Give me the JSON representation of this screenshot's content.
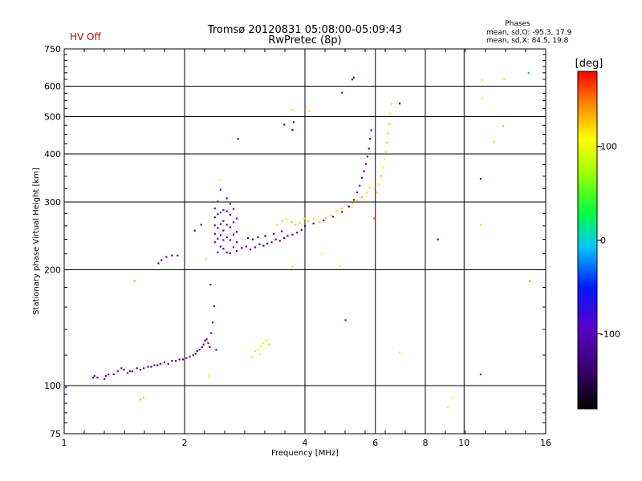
{
  "header": {
    "title_line1": "Tromsø 20120831 05:08:00-05:09:43",
    "title_line2": "RwPretec (8p)",
    "status": "HV Off",
    "status_color": "#cc0000"
  },
  "stats": {
    "heading": "Phases",
    "line_o": "mean, sd,O: -95.3, 17.9",
    "line_x": "mean, sd,X:  84.5, 19.8"
  },
  "colorbar": {
    "label": "[deg]",
    "min": -180,
    "max": 180,
    "ticks": [
      {
        "value": 100,
        "label": "100"
      },
      {
        "value": 0,
        "label": "0"
      },
      {
        "value": -100,
        "label": "-100"
      }
    ]
  },
  "chart_data": {
    "type": "scatter",
    "title": "Tromsø 20120831 05:08:00-05:09:43",
    "subtitle": "RwPretec (8p)",
    "xlabel": "Frequency [MHz]",
    "ylabel": "Stationary phase Virtual Height [km]",
    "x_scale": "log",
    "y_scale": "log",
    "xlim": [
      1,
      16
    ],
    "ylim": [
      75,
      750
    ],
    "grid": true,
    "x_ticks": [
      {
        "value": 1,
        "label": "1"
      },
      {
        "value": 2,
        "label": "2"
      },
      {
        "value": 4,
        "label": "4"
      },
      {
        "value": 6,
        "label": "6"
      },
      {
        "value": 8,
        "label": "8"
      },
      {
        "value": 10,
        "label": "10"
      },
      {
        "value": 16,
        "label": "16"
      }
    ],
    "y_ticks": [
      {
        "value": 75,
        "label": "75"
      },
      {
        "value": 100,
        "label": "100"
      },
      {
        "value": 200,
        "label": "200"
      },
      {
        "value": 300,
        "label": "300"
      },
      {
        "value": 400,
        "label": "400"
      },
      {
        "value": 500,
        "label": "500"
      },
      {
        "value": 600,
        "label": "600"
      },
      {
        "value": 750,
        "label": "750"
      }
    ],
    "x_grid": [
      2,
      4,
      6,
      8,
      10
    ],
    "y_grid": [
      100,
      200,
      300,
      400,
      500,
      600
    ],
    "color_encoding": "phase_deg",
    "points": [
      [
        1.01,
        99,
        -115
      ],
      [
        1.18,
        105,
        -110
      ],
      [
        1.19,
        106,
        -105
      ],
      [
        1.21,
        105,
        -115
      ],
      [
        1.26,
        104,
        -110
      ],
      [
        1.27,
        106,
        -100
      ],
      [
        1.29,
        107,
        -112
      ],
      [
        1.33,
        107,
        -108
      ],
      [
        1.36,
        109,
        -110
      ],
      [
        1.39,
        111,
        -105
      ],
      [
        1.41,
        110,
        -112
      ],
      [
        1.44,
        108,
        -100
      ],
      [
        1.46,
        109,
        -110
      ],
      [
        1.48,
        109,
        -108
      ],
      [
        1.52,
        111,
        -115
      ],
      [
        1.55,
        110,
        -105
      ],
      [
        1.58,
        111,
        -110
      ],
      [
        1.62,
        112,
        -108
      ],
      [
        1.65,
        112,
        -112
      ],
      [
        1.68,
        113,
        -105
      ],
      [
        1.71,
        113,
        -110
      ],
      [
        1.74,
        114,
        -108
      ],
      [
        1.78,
        115,
        -112
      ],
      [
        1.82,
        114,
        -110
      ],
      [
        1.86,
        116,
        -105
      ],
      [
        1.9,
        116,
        -112
      ],
      [
        1.94,
        117,
        -108
      ],
      [
        1.98,
        117,
        -110
      ],
      [
        2.02,
        118,
        -105
      ],
      [
        2.06,
        119,
        -112
      ],
      [
        2.1,
        120,
        -108
      ],
      [
        2.13,
        121,
        -112
      ],
      [
        2.15,
        123,
        -105
      ],
      [
        2.18,
        124,
        -110
      ],
      [
        2.21,
        126,
        -108
      ],
      [
        2.23,
        128,
        -112
      ],
      [
        2.25,
        131,
        -105
      ],
      [
        2.27,
        132,
        -110
      ],
      [
        2.29,
        129,
        -100
      ],
      [
        2.31,
        126,
        -115
      ],
      [
        2.33,
        137,
        -110
      ],
      [
        2.35,
        146,
        -105
      ],
      [
        2.37,
        161,
        -112
      ],
      [
        2.32,
        183,
        -105
      ],
      [
        2.4,
        124,
        -60
      ],
      [
        2.3,
        106,
        110
      ],
      [
        1.55,
        92,
        130
      ],
      [
        1.58,
        93,
        125
      ],
      [
        1.5,
        187,
        140
      ],
      [
        1.72,
        208,
        -105
      ],
      [
        1.75,
        212,
        -110
      ],
      [
        1.8,
        216,
        -108
      ],
      [
        1.86,
        218,
        -112
      ],
      [
        1.92,
        218,
        -105
      ],
      [
        2.26,
        213,
        120
      ],
      [
        2.12,
        253,
        -110
      ],
      [
        2.2,
        262,
        -108
      ],
      [
        2.38,
        236,
        -105
      ],
      [
        2.38,
        248,
        -110
      ],
      [
        2.38,
        261,
        -115
      ],
      [
        2.38,
        274,
        -95
      ],
      [
        2.38,
        289,
        -60
      ],
      [
        2.42,
        222,
        -100
      ],
      [
        2.42,
        241,
        -110
      ],
      [
        2.42,
        257,
        -112
      ],
      [
        2.42,
        279,
        -105
      ],
      [
        2.42,
        301,
        -60
      ],
      [
        2.46,
        230,
        -110
      ],
      [
        2.46,
        246,
        -105
      ],
      [
        2.46,
        263,
        -112
      ],
      [
        2.46,
        282,
        -95
      ],
      [
        2.46,
        323,
        -100
      ],
      [
        2.5,
        227,
        -110
      ],
      [
        2.5,
        239,
        -100
      ],
      [
        2.5,
        253,
        -115
      ],
      [
        2.5,
        268,
        -110
      ],
      [
        2.5,
        286,
        -60
      ],
      [
        2.55,
        222,
        -110
      ],
      [
        2.55,
        243,
        -105
      ],
      [
        2.55,
        262,
        -112
      ],
      [
        2.55,
        284,
        -95
      ],
      [
        2.55,
        307,
        -110
      ],
      [
        2.6,
        221,
        -110
      ],
      [
        2.6,
        239,
        -100
      ],
      [
        2.6,
        258,
        -112
      ],
      [
        2.6,
        278,
        -105
      ],
      [
        2.6,
        297,
        -60
      ],
      [
        2.65,
        229,
        -105
      ],
      [
        2.65,
        247,
        -115
      ],
      [
        2.65,
        266,
        -110
      ],
      [
        2.65,
        288,
        -95
      ],
      [
        2.7,
        224,
        -110
      ],
      [
        2.7,
        236,
        -105
      ],
      [
        2.7,
        251,
        -112
      ],
      [
        2.7,
        272,
        -100
      ],
      [
        2.45,
        342,
        110
      ],
      [
        2.72,
        438,
        -100
      ],
      [
        2.78,
        228,
        -110
      ],
      [
        2.85,
        230,
        -105
      ],
      [
        2.92,
        226,
        -112
      ],
      [
        3.0,
        229,
        -108
      ],
      [
        3.08,
        233,
        -120
      ],
      [
        3.15,
        231,
        -130
      ],
      [
        3.22,
        234,
        -132
      ],
      [
        3.3,
        236,
        -128
      ],
      [
        3.38,
        240,
        -130
      ],
      [
        3.46,
        238,
        -125
      ],
      [
        3.55,
        242,
        -120
      ],
      [
        3.62,
        245,
        -125
      ],
      [
        3.72,
        247,
        -118
      ],
      [
        3.82,
        250,
        -115
      ],
      [
        3.92,
        254,
        -112
      ],
      [
        2.88,
        242,
        -112
      ],
      [
        2.96,
        240,
        -110
      ],
      [
        3.05,
        243,
        -118
      ],
      [
        3.18,
        245,
        -128
      ],
      [
        3.34,
        248,
        -130
      ],
      [
        3.5,
        252,
        -125
      ],
      [
        3.4,
        262,
        120
      ],
      [
        3.5,
        268,
        125
      ],
      [
        3.6,
        271,
        115
      ],
      [
        3.7,
        266,
        130
      ],
      [
        3.78,
        262,
        120
      ],
      [
        3.88,
        265,
        125
      ],
      [
        3.98,
        272,
        118
      ],
      [
        4.08,
        268,
        130
      ],
      [
        4.2,
        271,
        120
      ],
      [
        4.35,
        266,
        128
      ],
      [
        4.5,
        272,
        120
      ],
      [
        4.65,
        278,
        125
      ],
      [
        4.8,
        285,
        118
      ],
      [
        4.95,
        289,
        130
      ],
      [
        5.1,
        294,
        120
      ],
      [
        5.25,
        298,
        125
      ],
      [
        5.4,
        303,
        118
      ],
      [
        5.55,
        309,
        130
      ],
      [
        5.7,
        318,
        120
      ],
      [
        5.8,
        327,
        125
      ],
      [
        4.0,
        260,
        -110
      ],
      [
        4.2,
        264,
        -105
      ],
      [
        4.45,
        269,
        -112
      ],
      [
        4.7,
        275,
        -100
      ],
      [
        4.95,
        283,
        -105
      ],
      [
        5.15,
        292,
        -110
      ],
      [
        5.3,
        304,
        -105
      ],
      [
        5.4,
        318,
        -110
      ],
      [
        5.48,
        331,
        -105
      ],
      [
        5.55,
        347,
        -112
      ],
      [
        5.62,
        361,
        -100
      ],
      [
        5.68,
        377,
        -110
      ],
      [
        5.73,
        394,
        -105
      ],
      [
        5.78,
        413,
        -110
      ],
      [
        5.82,
        438,
        -112
      ],
      [
        5.86,
        461,
        -100
      ],
      [
        6.05,
        318,
        120
      ],
      [
        6.12,
        333,
        110
      ],
      [
        6.2,
        351,
        125
      ],
      [
        6.26,
        368,
        115
      ],
      [
        6.32,
        387,
        110
      ],
      [
        6.38,
        405,
        120
      ],
      [
        6.42,
        428,
        130
      ],
      [
        6.46,
        452,
        125
      ],
      [
        6.5,
        478,
        130
      ],
      [
        6.54,
        510,
        120
      ],
      [
        6.58,
        540,
        125
      ],
      [
        3.05,
        124,
        95
      ],
      [
        3.1,
        127,
        100
      ],
      [
        3.15,
        129,
        90
      ],
      [
        3.2,
        131,
        95
      ],
      [
        3.25,
        128,
        88
      ],
      [
        3.08,
        121,
        100
      ],
      [
        2.95,
        119,
        90
      ],
      [
        3.0,
        123,
        95
      ],
      [
        4.95,
        577,
        -100
      ],
      [
        5.25,
        625,
        -105
      ],
      [
        5.3,
        632,
        -110
      ],
      [
        3.55,
        477,
        -110
      ],
      [
        3.75,
        484,
        -105
      ],
      [
        3.72,
        462,
        -120
      ],
      [
        3.72,
        520,
        120
      ],
      [
        4.1,
        518,
        120
      ],
      [
        5.05,
        148,
        -115
      ],
      [
        4.4,
        220,
        110
      ],
      [
        4.9,
        205,
        120
      ],
      [
        3.72,
        204,
        120
      ],
      [
        6.9,
        541,
        -170
      ],
      [
        5.95,
        272,
        150
      ],
      [
        6.9,
        122,
        95
      ],
      [
        8.6,
        240,
        -108
      ],
      [
        9.1,
        88,
        95
      ],
      [
        9.35,
        93,
        100
      ],
      [
        11.0,
        345,
        -110
      ],
      [
        11.0,
        107,
        -100
      ],
      [
        11.1,
        623,
        120
      ],
      [
        11.1,
        560,
        115
      ],
      [
        11.0,
        262,
        125
      ],
      [
        11.9,
        431,
        120
      ],
      [
        12.5,
        473,
        130
      ],
      [
        12.6,
        627,
        120
      ],
      [
        14.5,
        650,
        -10
      ],
      [
        14.6,
        187,
        150
      ]
    ]
  }
}
